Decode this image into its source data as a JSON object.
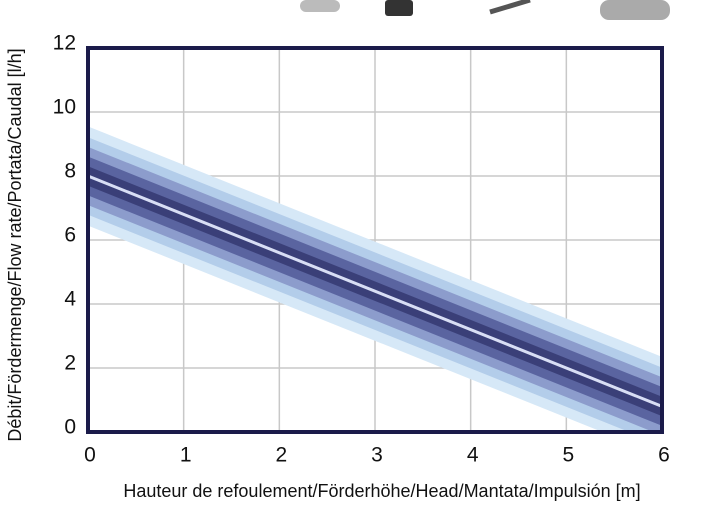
{
  "chart_data": {
    "type": "line",
    "x": [
      0,
      6
    ],
    "series": [
      {
        "name": null,
        "color": "#3a3f78",
        "values": [
          8.0,
          0.8
        ]
      }
    ],
    "xlim": [
      0,
      6
    ],
    "xticks": [
      0,
      1,
      2,
      3,
      4,
      5,
      6
    ],
    "ylim": [
      0,
      12
    ],
    "yticks": [
      0,
      2,
      4,
      6,
      8,
      10,
      12
    ],
    "grid": true,
    "x_label": "Hauteur de refoulement/Förderhöhe/Head/Mantata/Impulsión [m]",
    "y_label": "Débit/Fördermenge/Flow rate/Portata/Caudal [l/h]"
  }
}
